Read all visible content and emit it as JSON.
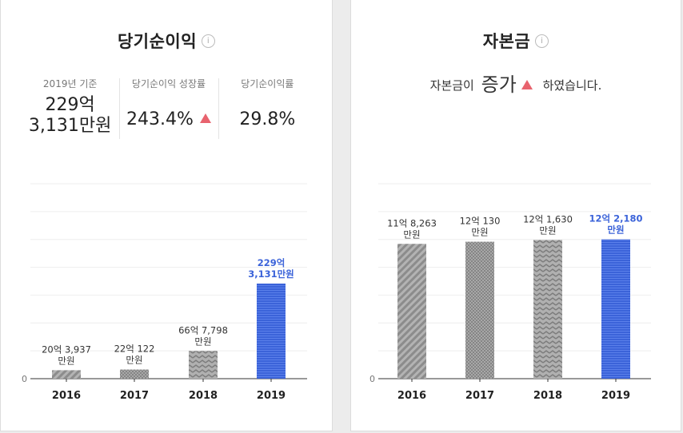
{
  "left_card": {
    "title": "당기순이익",
    "info_icon": "i",
    "stats": [
      {
        "label": "2019년 기준",
        "value_line1": "229억",
        "value_line2": "3,131만원"
      },
      {
        "label": "당기순이익 성장률",
        "value": "243.4%",
        "trend": "up"
      },
      {
        "label": "당기순이익률",
        "value": "29.8%"
      }
    ]
  },
  "right_card": {
    "title": "자본금",
    "info_icon": "i",
    "summary_prefix": "자본금이",
    "summary_change": "증가",
    "summary_suffix": "하였습니다."
  },
  "colors": {
    "bar": "#9a9a9a",
    "highlight": "#3b63d9",
    "up": "#e8636e",
    "grid": "#eeeeee"
  },
  "chart_data": [
    {
      "type": "bar",
      "title": "당기순이익",
      "unit": "억원",
      "categories": [
        "2016",
        "2017",
        "2018",
        "2019"
      ],
      "values": [
        20.3937,
        22.0122,
        66.7798,
        229.3131
      ],
      "labels": [
        [
          "20억 3,937",
          "만원"
        ],
        [
          "22억 122",
          "만원"
        ],
        [
          "66억 7,798",
          "만원"
        ],
        [
          "229억",
          "3,131만원"
        ]
      ],
      "highlight_index": 3,
      "ylim": [
        0,
        470
      ],
      "y_tick_label": "0",
      "xlabel": "",
      "ylabel": "",
      "grid": true
    },
    {
      "type": "bar",
      "title": "자본금",
      "unit": "억원",
      "categories": [
        "2016",
        "2017",
        "2018",
        "2019"
      ],
      "values": [
        11.8263,
        12.013,
        12.163,
        12.218
      ],
      "labels": [
        [
          "11억 8,263",
          "만원"
        ],
        [
          "12억 130",
          "만원"
        ],
        [
          "12억 1,630",
          "만원"
        ],
        [
          "12억 2,180",
          "만원"
        ]
      ],
      "highlight_index": 3,
      "ylim": [
        0,
        17.1
      ],
      "y_tick_label": "0",
      "xlabel": "",
      "ylabel": "",
      "grid": true
    }
  ]
}
